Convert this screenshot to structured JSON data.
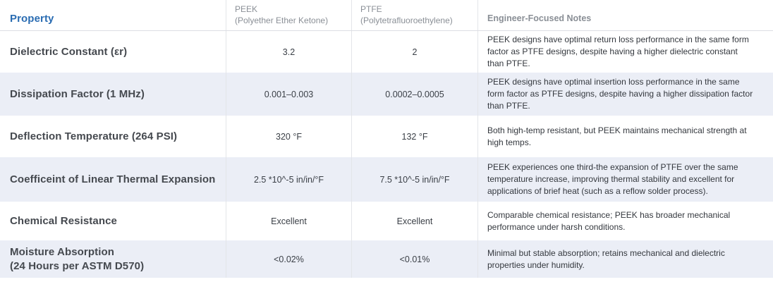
{
  "colors": {
    "property_header_blue": "#2a6cb2",
    "muted_header_gray": "#8a8f96",
    "stripe_background": "#ebeef6",
    "divider": "#e3e5e9",
    "body_text": "#34383e"
  },
  "chart_data": {
    "type": "table",
    "columns": [
      {
        "label": "Property",
        "sublabel": ""
      },
      {
        "label": "PEEK",
        "sublabel": "(Polyether Ether Ketone)"
      },
      {
        "label": "PTFE",
        "sublabel": "(Polytetrafluoroethylene)"
      },
      {
        "label": "Engineer-Focused Notes",
        "sublabel": ""
      }
    ],
    "rows": [
      {
        "property": "Dielectric Constant (εr)",
        "peek": "3.2",
        "ptfe": "2",
        "notes": "PEEK designs have optimal return loss performance in the same form factor as PTFE designs, despite having a higher dielectric constant than PTFE."
      },
      {
        "property": "Dissipation Factor (1 MHz)",
        "peek": "0.001–0.003",
        "ptfe": "0.0002–0.0005",
        "notes": "PEEK designs have optimal insertion loss performance in the same form factor as PTFE designs, despite having a higher dissipation factor than PTFE."
      },
      {
        "property": "Deflection Temperature (264 PSI)",
        "peek": "320 °F",
        "ptfe": "132 °F",
        "notes": "Both high-temp resistant, but PEEK maintains mechanical strength at high temps."
      },
      {
        "property": "Coefficeint of Linear Thermal Expansion",
        "peek": "2.5 *10^-5 in/in/°F",
        "ptfe": "7.5 *10^-5 in/in/°F",
        "notes": "PEEK experiences one third-the expansion of PTFE over the same temperature increase, improving thermal stability and excellent for applications of brief heat (such as a reflow solder process)."
      },
      {
        "property": "Chemical Resistance",
        "peek": "Excellent",
        "ptfe": "Excellent",
        "notes": "Comparable chemical resistance; PEEK has broader mechanical performance under harsh conditions."
      },
      {
        "property": "Moisture Absorption\n(24 Hours per ASTM D570)",
        "peek": "<0.02%",
        "ptfe": "<0.01%",
        "notes": "Minimal but stable absorption; retains mechanical and dielectric properties under humidity."
      }
    ]
  }
}
